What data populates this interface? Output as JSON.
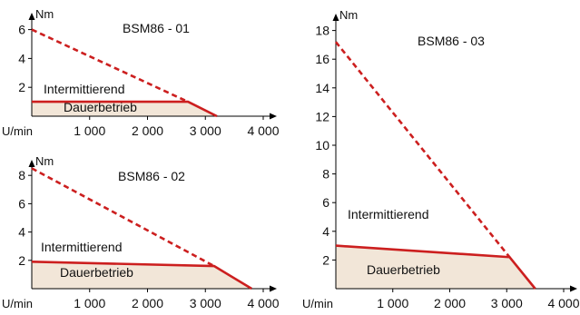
{
  "colors": {
    "curve": "#cc1f1f",
    "fill": "#f2e6d8",
    "axis": "#000000"
  },
  "labels": {
    "torque_unit": "Nm",
    "speed_unit": "U/min",
    "intermittent": "Intermittierend",
    "continuous": "Dauerbetrieb"
  },
  "chart_data": [
    {
      "type": "line",
      "title": "BSM86 - 01",
      "xlabel": "U/min",
      "ylabel": "Nm",
      "xlim": [
        0,
        4400
      ],
      "ylim": [
        0,
        6.8
      ],
      "x_ticks": [
        1000,
        2000,
        3000,
        4000
      ],
      "x_tick_labels": [
        "1 000",
        "2 000",
        "3 000",
        "4 000"
      ],
      "y_ticks": [
        2,
        4,
        6
      ],
      "y_tick_labels": [
        "2",
        "4",
        "6"
      ],
      "series": [
        {
          "name": "Intermittierend",
          "style": "dashed",
          "points": [
            [
              0,
              6.0
            ],
            [
              2700,
              1.0
            ]
          ]
        },
        {
          "name": "Dauerbetrieb",
          "style": "solid",
          "points": [
            [
              0,
              1.0
            ],
            [
              2700,
              1.0
            ],
            [
              3200,
              0
            ]
          ]
        }
      ]
    },
    {
      "type": "line",
      "title": "BSM86 - 02",
      "xlabel": "U/min",
      "ylabel": "Nm",
      "xlim": [
        0,
        4400
      ],
      "ylim": [
        0,
        9.4
      ],
      "x_ticks": [
        1000,
        2000,
        3000,
        4000
      ],
      "x_tick_labels": [
        "1 000",
        "2 000",
        "3 000",
        "4 000"
      ],
      "y_ticks": [
        2,
        4,
        6,
        8
      ],
      "y_tick_labels": [
        "2",
        "4",
        "6",
        "8"
      ],
      "series": [
        {
          "name": "Intermittierend",
          "style": "dashed",
          "points": [
            [
              0,
              8.5
            ],
            [
              3150,
              1.6
            ]
          ]
        },
        {
          "name": "Dauerbetrieb",
          "style": "solid",
          "points": [
            [
              0,
              1.9
            ],
            [
              3150,
              1.6
            ],
            [
              3800,
              0
            ]
          ]
        }
      ]
    },
    {
      "type": "line",
      "title": "BSM86 - 03",
      "xlabel": "U/min",
      "ylabel": "Nm",
      "xlim": [
        0,
        4400
      ],
      "ylim": [
        0,
        19.0
      ],
      "x_ticks": [
        1000,
        2000,
        3000,
        4000
      ],
      "x_tick_labels": [
        "1 000",
        "2 000",
        "3 000",
        "4 000"
      ],
      "y_ticks": [
        2,
        4,
        6,
        8,
        10,
        12,
        14,
        16,
        18
      ],
      "y_tick_labels": [
        "2",
        "4",
        "6",
        "8",
        "10",
        "12",
        "14",
        "16",
        "18"
      ],
      "series": [
        {
          "name": "Intermittierend",
          "style": "dashed",
          "points": [
            [
              0,
              17.2
            ],
            [
              3050,
              2.2
            ]
          ]
        },
        {
          "name": "Dauerbetrieb",
          "style": "solid",
          "points": [
            [
              0,
              3.0
            ],
            [
              3050,
              2.2
            ],
            [
              3500,
              0
            ]
          ]
        }
      ]
    }
  ]
}
